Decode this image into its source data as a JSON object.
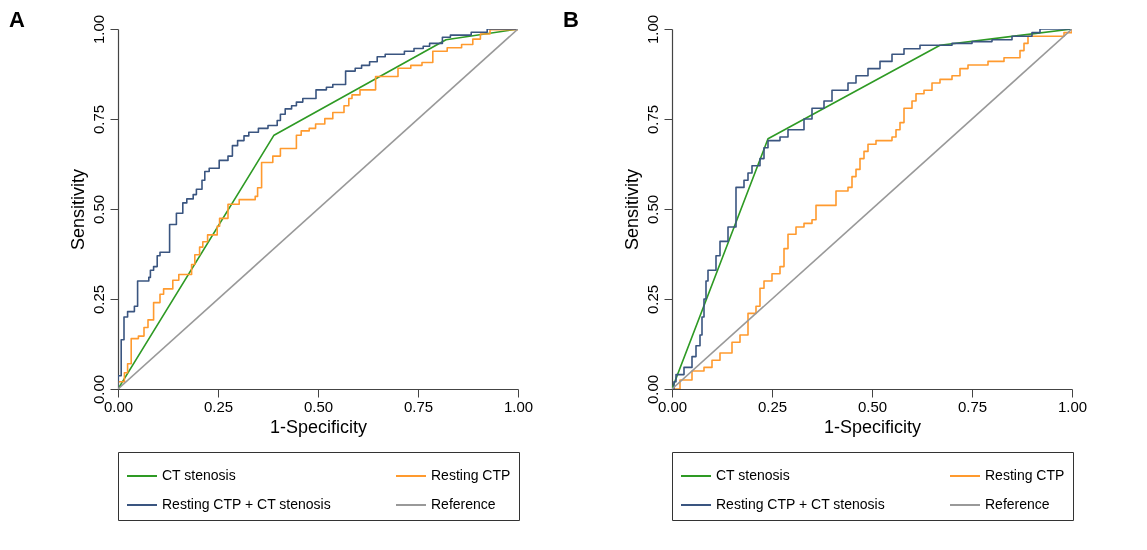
{
  "chart_data": [
    {
      "type": "line",
      "title": "A",
      "xlabel": "1-Specificity",
      "ylabel": "Sensitivity",
      "xlim": [
        0,
        1
      ],
      "ylim": [
        0,
        1
      ],
      "xticks": [
        {
          "value": 0,
          "label": "0.00"
        },
        {
          "value": 0.25,
          "label": "0.25"
        },
        {
          "value": 0.5,
          "label": "0.50"
        },
        {
          "value": 0.75,
          "label": "0.75"
        },
        {
          "value": 1,
          "label": "1.00"
        }
      ],
      "yticks": [
        {
          "value": 0,
          "label": "0.00"
        },
        {
          "value": 0.25,
          "label": "0.25"
        },
        {
          "value": 0.5,
          "label": "0.50"
        },
        {
          "value": 0.75,
          "label": "0.75"
        },
        {
          "value": 1,
          "label": "1.00"
        }
      ],
      "grid": false,
      "legend": "bottom",
      "series": [
        {
          "name": "CT stenosis",
          "type": "line",
          "color": "#2e9a24",
          "x": [
            0,
            0.39,
            0.82,
            1
          ],
          "values": [
            0,
            0.705,
            0.97,
            1
          ]
        },
        {
          "name": "Resting CTP",
          "type": "step",
          "color": "#ff9a2e",
          "x": [
            0,
            0,
            0.016,
            0.024,
            0.033,
            0.051,
            0.065,
            0.075,
            0.089,
            0.105,
            0.114,
            0.137,
            0.152,
            0.184,
            0.192,
            0.204,
            0.212,
            0.224,
            0.248,
            0.254,
            0.275,
            0.303,
            0.343,
            0.349,
            0.359,
            0.387,
            0.406,
            0.446,
            0.458,
            0.478,
            0.494,
            0.517,
            0.537,
            0.565,
            0.577,
            0.585,
            0.605,
            0.644,
            0.7,
            0.732,
            0.76,
            0.787,
            0.823,
            0.859,
            0.887,
            0.906,
            0.93,
            1
          ],
          "values": [
            0,
            0.02,
            0.045,
            0.07,
            0.14,
            0.147,
            0.171,
            0.192,
            0.24,
            0.263,
            0.278,
            0.302,
            0.318,
            0.346,
            0.373,
            0.394,
            0.409,
            0.428,
            0.452,
            0.474,
            0.513,
            0.526,
            0.535,
            0.559,
            0.629,
            0.647,
            0.668,
            0.705,
            0.717,
            0.724,
            0.736,
            0.751,
            0.768,
            0.787,
            0.807,
            0.817,
            0.831,
            0.868,
            0.891,
            0.899,
            0.907,
            0.938,
            0.948,
            0.957,
            0.972,
            0.986,
            0.998,
            1
          ]
        },
        {
          "name": "Resting CTP + CT stenosis",
          "type": "step",
          "color": "#3a5580",
          "x": [
            0,
            0,
            0.008,
            0.015,
            0.024,
            0.041,
            0.049,
            0.077,
            0.081,
            0.089,
            0.098,
            0.105,
            0.129,
            0.146,
            0.162,
            0.172,
            0.188,
            0.196,
            0.21,
            0.217,
            0.228,
            0.253,
            0.275,
            0.286,
            0.299,
            0.315,
            0.327,
            0.351,
            0.375,
            0.398,
            0.406,
            0.418,
            0.434,
            0.446,
            0.462,
            0.495,
            0.521,
            0.537,
            0.569,
            0.593,
            0.609,
            0.629,
            0.648,
            0.668,
            0.716,
            0.74,
            0.763,
            0.779,
            0.811,
            0.831,
            0.883,
            0.923,
            1
          ],
          "values": [
            0,
            0.037,
            0.137,
            0.2,
            0.215,
            0.23,
            0.3,
            0.31,
            0.33,
            0.34,
            0.37,
            0.38,
            0.457,
            0.488,
            0.517,
            0.528,
            0.54,
            0.555,
            0.58,
            0.604,
            0.613,
            0.635,
            0.647,
            0.676,
            0.69,
            0.703,
            0.713,
            0.724,
            0.732,
            0.746,
            0.763,
            0.778,
            0.787,
            0.797,
            0.807,
            0.831,
            0.838,
            0.846,
            0.883,
            0.891,
            0.899,
            0.909,
            0.923,
            0.93,
            0.938,
            0.946,
            0.952,
            0.96,
            0.977,
            0.983,
            0.991,
            1,
            1
          ]
        },
        {
          "name": "Reference",
          "type": "line",
          "color": "#999999",
          "x": [
            0,
            1
          ],
          "values": [
            0,
            1
          ]
        }
      ]
    },
    {
      "type": "line",
      "title": "B",
      "xlabel": "1-Specificity",
      "ylabel": "Sensitivity",
      "xlim": [
        0,
        1
      ],
      "ylim": [
        0,
        1
      ],
      "xticks": [
        {
          "value": 0,
          "label": "0.00"
        },
        {
          "value": 0.25,
          "label": "0.25"
        },
        {
          "value": 0.5,
          "label": "0.50"
        },
        {
          "value": 0.75,
          "label": "0.75"
        },
        {
          "value": 1,
          "label": "1.00"
        }
      ],
      "yticks": [
        {
          "value": 0,
          "label": "0.00"
        },
        {
          "value": 0.25,
          "label": "0.25"
        },
        {
          "value": 0.5,
          "label": "0.50"
        },
        {
          "value": 0.75,
          "label": "0.75"
        },
        {
          "value": 1,
          "label": "1.00"
        }
      ],
      "grid": false,
      "legend": "bottom",
      "series": [
        {
          "name": "CT stenosis",
          "type": "line",
          "color": "#2e9a24",
          "x": [
            0,
            0.24,
            0.67,
            1
          ],
          "values": [
            0,
            0.695,
            0.955,
            1
          ]
        },
        {
          "name": "Resting CTP",
          "type": "step",
          "color": "#ff9a2e",
          "x": [
            0,
            0.02,
            0.05,
            0.08,
            0.1,
            0.12,
            0.15,
            0.17,
            0.19,
            0.19,
            0.21,
            0.22,
            0.23,
            0.25,
            0.27,
            0.28,
            0.29,
            0.31,
            0.33,
            0.35,
            0.36,
            0.41,
            0.41,
            0.44,
            0.45,
            0.46,
            0.47,
            0.48,
            0.49,
            0.51,
            0.55,
            0.56,
            0.57,
            0.58,
            0.6,
            0.61,
            0.63,
            0.65,
            0.67,
            0.7,
            0.72,
            0.74,
            0.79,
            0.83,
            0.87,
            0.88,
            0.89,
            0.98,
            1
          ],
          "values": [
            0,
            0.025,
            0.05,
            0.06,
            0.08,
            0.1,
            0.13,
            0.15,
            0.17,
            0.21,
            0.23,
            0.28,
            0.3,
            0.32,
            0.34,
            0.39,
            0.43,
            0.45,
            0.46,
            0.47,
            0.51,
            0.53,
            0.55,
            0.56,
            0.59,
            0.61,
            0.64,
            0.66,
            0.68,
            0.69,
            0.7,
            0.72,
            0.74,
            0.78,
            0.8,
            0.82,
            0.83,
            0.85,
            0.86,
            0.87,
            0.89,
            0.9,
            0.91,
            0.92,
            0.94,
            0.96,
            0.98,
            0.99,
            1
          ]
        },
        {
          "name": "Resting CTP + CT stenosis",
          "type": "step",
          "color": "#3a5580",
          "x": [
            0,
            0.005,
            0.01,
            0.03,
            0.05,
            0.06,
            0.07,
            0.075,
            0.08,
            0.085,
            0.09,
            0.11,
            0.12,
            0.14,
            0.16,
            0.16,
            0.18,
            0.19,
            0.2,
            0.22,
            0.23,
            0.24,
            0.27,
            0.29,
            0.33,
            0.35,
            0.38,
            0.4,
            0.44,
            0.46,
            0.49,
            0.52,
            0.55,
            0.58,
            0.62,
            0.7,
            0.75,
            0.8,
            0.85,
            0.9,
            0.92,
            1
          ],
          "values": [
            0,
            0.02,
            0.04,
            0.06,
            0.09,
            0.12,
            0.15,
            0.2,
            0.25,
            0.3,
            0.33,
            0.37,
            0.41,
            0.45,
            0.49,
            0.56,
            0.58,
            0.6,
            0.62,
            0.64,
            0.67,
            0.69,
            0.7,
            0.72,
            0.75,
            0.78,
            0.8,
            0.83,
            0.85,
            0.87,
            0.89,
            0.91,
            0.93,
            0.945,
            0.955,
            0.96,
            0.965,
            0.97,
            0.98,
            0.99,
            1,
            1
          ]
        },
        {
          "name": "Reference",
          "type": "line",
          "color": "#999999",
          "x": [
            0,
            1
          ],
          "values": [
            0,
            1
          ]
        }
      ]
    }
  ]
}
